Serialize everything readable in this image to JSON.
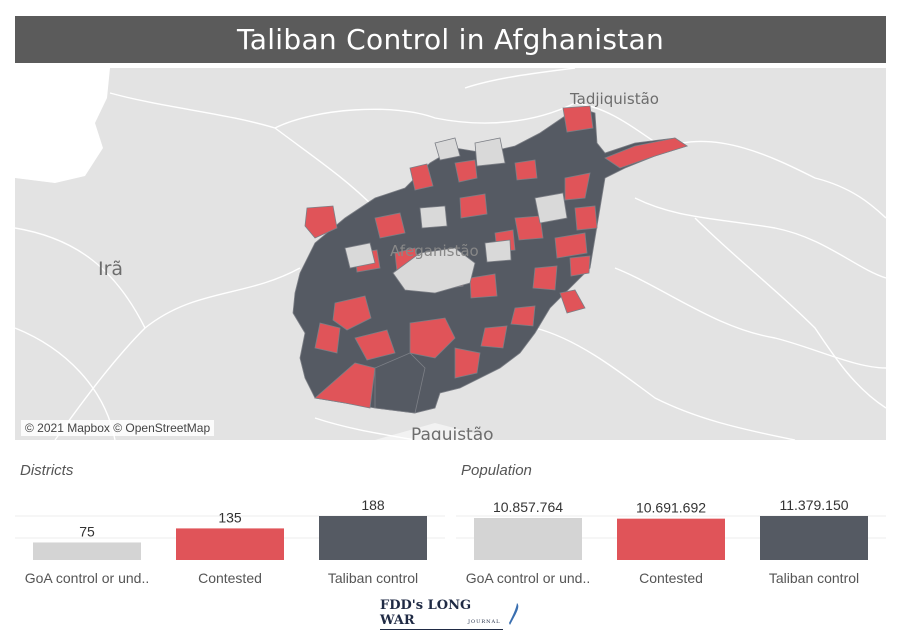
{
  "title": "Taliban Control in Afghanistan",
  "map": {
    "attribution": "© 2021 Mapbox © OpenStreetMap",
    "labels": {
      "iran": "Irã",
      "afghanistan": "Afeganistão",
      "tajikistan": "Tadjiquistão",
      "pakistan": "Paquistão"
    },
    "colors": {
      "taliban": "#555a63",
      "contested": "#e05459",
      "background": "#e3e3e3"
    }
  },
  "districts": {
    "section_title": "Districts",
    "chart_data": {
      "type": "bar",
      "title": "Districts",
      "categories": [
        "GoA control or und..",
        "Contested",
        "Taliban control"
      ],
      "values": [
        75,
        135,
        188
      ],
      "value_labels": [
        "75",
        "135",
        "188"
      ],
      "colors": [
        "#d4d4d4",
        "#e05459",
        "#555a63"
      ],
      "ylim": [
        0,
        188
      ]
    }
  },
  "population": {
    "section_title": "Population",
    "chart_data": {
      "type": "bar",
      "title": "Population",
      "categories": [
        "GoA control or und..",
        "Contested",
        "Taliban control"
      ],
      "values": [
        10857764,
        10691692,
        11379150
      ],
      "value_labels": [
        "10.857.764",
        "10.691.692",
        "11.379.150"
      ],
      "colors": [
        "#d4d4d4",
        "#e05459",
        "#555a63"
      ],
      "ylim": [
        0,
        11379150
      ]
    }
  },
  "logo": {
    "text": "FDD's LONG WAR",
    "subtext": "JOURNAL"
  }
}
